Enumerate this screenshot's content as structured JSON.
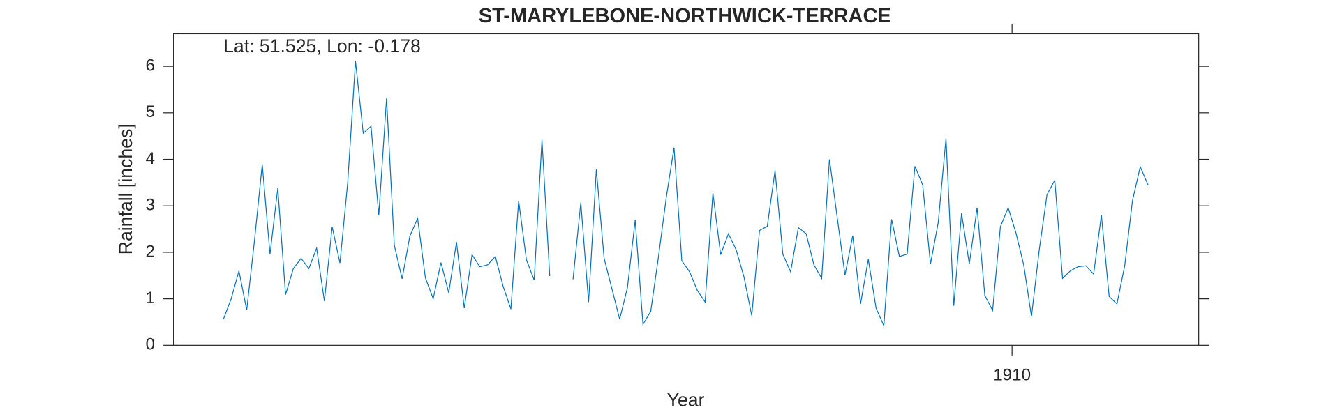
{
  "chart_data": {
    "type": "line",
    "title": "ST-MARYLEBONE-NORTHWICK-TERRACE",
    "annotation": "Lat: 51.525, Lon: -0.178",
    "x_label": "Year",
    "y_label": "Rainfall [inches]",
    "color": "#0072bd",
    "categories": [
      null,
      null,
      null,
      null,
      null,
      null,
      null,
      null,
      null,
      null,
      null,
      null,
      null,
      null,
      null,
      null,
      null,
      null,
      null,
      null,
      null,
      null,
      null,
      null,
      null,
      null,
      null,
      null,
      null,
      null,
      null,
      null,
      null,
      null,
      null,
      null,
      null,
      null,
      null,
      null,
      null,
      null,
      null,
      null,
      null,
      null,
      null,
      null,
      null,
      null,
      null,
      null,
      null,
      null,
      null,
      null,
      null,
      null,
      null,
      null,
      null,
      null,
      null,
      null,
      null,
      null,
      null,
      null,
      null,
      null,
      null,
      null,
      null,
      null,
      null,
      null,
      null,
      null,
      null,
      null,
      null,
      null,
      null,
      null,
      null,
      null,
      null,
      null,
      null,
      null,
      null,
      null,
      null,
      null,
      null,
      null,
      null,
      null,
      null,
      null,
      null,
      null,
      "1910",
      null,
      null,
      null,
      null,
      null,
      null,
      null,
      null,
      null,
      null,
      null,
      null,
      null,
      null,
      null,
      null,
      null
    ],
    "values": [
      0.56,
      1.0,
      1.6,
      0.76,
      2.25,
      3.89,
      1.96,
      3.38,
      1.09,
      1.65,
      1.87,
      1.65,
      2.09,
      0.95,
      2.55,
      1.77,
      3.5,
      6.11,
      4.56,
      4.71,
      2.8,
      5.31,
      2.15,
      1.43,
      2.35,
      2.73,
      1.45,
      1.0,
      1.78,
      1.13,
      2.22,
      0.8,
      1.95,
      1.69,
      1.73,
      1.91,
      1.27,
      0.78,
      3.11,
      1.84,
      1.4,
      4.42,
      1.49,
      null,
      null,
      1.42,
      3.07,
      0.93,
      3.78,
      1.87,
      1.22,
      0.56,
      1.24,
      2.69,
      0.45,
      0.73,
      1.91,
      3.18,
      4.25,
      1.82,
      1.58,
      1.18,
      0.93,
      3.27,
      1.95,
      2.4,
      2.05,
      1.47,
      0.64,
      2.47,
      2.56,
      3.76,
      1.96,
      1.58,
      2.53,
      2.4,
      1.73,
      1.44,
      4.0,
      2.75,
      1.51,
      2.36,
      0.89,
      1.85,
      0.8,
      0.42,
      2.71,
      1.91,
      1.96,
      3.85,
      3.45,
      1.75,
      2.64,
      4.45,
      0.85,
      2.84,
      1.75,
      2.96,
      1.07,
      0.75,
      2.55,
      2.96,
      2.42,
      1.73,
      0.62,
      2.05,
      3.24,
      3.55,
      1.44,
      1.6,
      1.69,
      1.71,
      1.53,
      2.8,
      1.05,
      0.89,
      1.71,
      3.11,
      3.84,
      3.45
    ],
    "ylim": [
      0,
      6.7
    ],
    "yticks": [
      0,
      1,
      2,
      3,
      4,
      5,
      6
    ]
  }
}
